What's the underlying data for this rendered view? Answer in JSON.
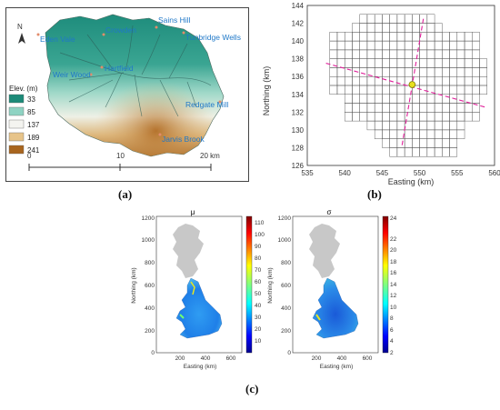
{
  "panel_a": {
    "caption": "(a)",
    "north_label": "N",
    "places": [
      "Eden Vale",
      "Crowden",
      "Sains Hill",
      "Tunbridge Wells",
      "Weir Wood",
      "Hartfield",
      "Redgate Mill",
      "Jarvis Brook"
    ],
    "legend": {
      "title": "Elev. (m)",
      "entries": [
        {
          "label": "33",
          "color": "#1c8a78"
        },
        {
          "label": "85",
          "color": "#8fd3c3"
        },
        {
          "label": "137",
          "color": "#f4f4f0"
        },
        {
          "label": "189",
          "color": "#e7c48a"
        },
        {
          "label": "241",
          "color": "#a8651e"
        }
      ]
    },
    "scale": {
      "ticks": [
        "0",
        "10",
        "20 km"
      ]
    }
  },
  "panel_b": {
    "caption": "(b)",
    "xlabel": "Easting (km)",
    "ylabel": "Northing (km)",
    "xticks": [
      "535",
      "540",
      "545",
      "550",
      "555",
      "560"
    ],
    "yticks": [
      "126",
      "128",
      "130",
      "132",
      "134",
      "136",
      "138",
      "140",
      "142",
      "144"
    ],
    "xlim": [
      535,
      560
    ],
    "ylim": [
      126,
      144
    ],
    "colors": {
      "grid": "#555555",
      "line": "#e0209a",
      "point": "#e8e020"
    }
  },
  "panel_c": {
    "caption": "(c)",
    "maps": [
      {
        "title": "μ",
        "xlabel": "Easting (km)",
        "ylabel": "Northing (km)",
        "xticks": [
          "200",
          "400",
          "600"
        ],
        "yticks": [
          "0",
          "200",
          "400",
          "600",
          "800",
          "1000",
          "1200"
        ],
        "colorbar_ticks": [
          "10",
          "20",
          "30",
          "40",
          "50",
          "60",
          "70",
          "80",
          "90",
          "100",
          "110"
        ]
      },
      {
        "title": "σ",
        "xlabel": "Easting (km)",
        "ylabel": "Northing (km)",
        "xticks": [
          "200",
          "400",
          "600"
        ],
        "yticks": [
          "0",
          "200",
          "400",
          "600",
          "800",
          "1000",
          "1200"
        ],
        "colorbar_ticks": [
          "2",
          "4",
          "6",
          "8",
          "10",
          "12",
          "14",
          "16",
          "18",
          "20",
          "22",
          "24"
        ]
      }
    ],
    "colors": {
      "mask": "#c8c8c8"
    }
  }
}
